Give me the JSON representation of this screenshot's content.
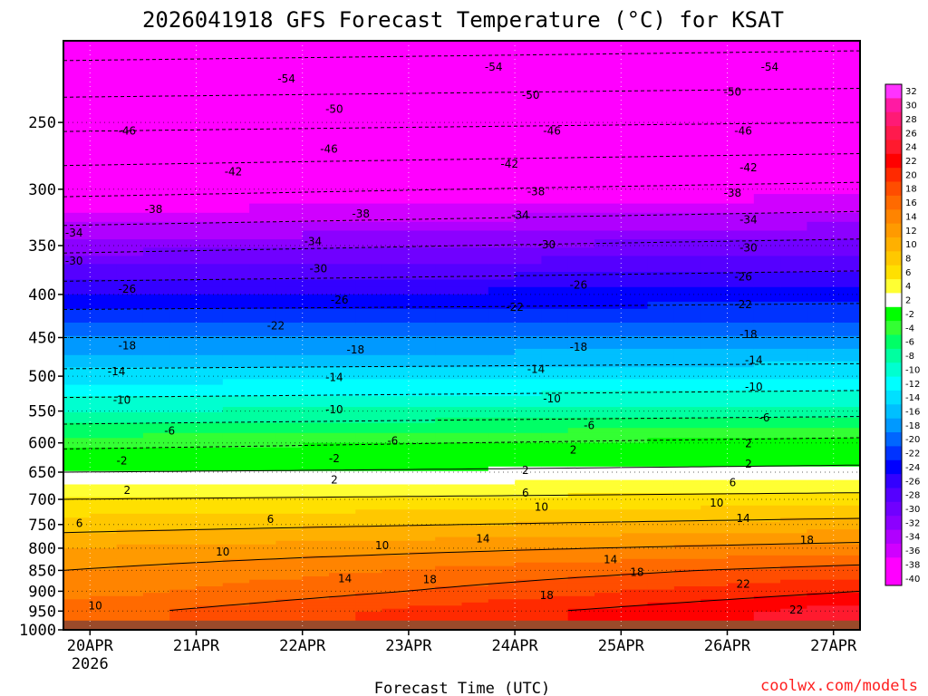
{
  "chart_data": {
    "type": "heatmap",
    "title": "2026041918 GFS Forecast Temperature (°C) for KSAT",
    "xlabel": "Forecast Time (UTC)",
    "ylabel": "",
    "credit": "coolwx.com/models",
    "x_ticks": [
      {
        "label": "20APR",
        "sublabel": "2026",
        "day": 0.25
      },
      {
        "label": "21APR",
        "day": 1.25
      },
      {
        "label": "22APR",
        "day": 2.25
      },
      {
        "label": "23APR",
        "day": 3.25
      },
      {
        "label": "24APR",
        "day": 4.25
      },
      {
        "label": "25APR",
        "day": 5.25
      },
      {
        "label": "26APR",
        "day": 6.25
      },
      {
        "label": "27APR",
        "day": 7.25
      }
    ],
    "xlim_days": [
      0,
      7.5
    ],
    "y_axis": "pressure (hPa), log scale, inverted",
    "ylim": [
      1000,
      200
    ],
    "y_ticks": [
      250,
      300,
      350,
      400,
      450,
      500,
      550,
      600,
      650,
      700,
      750,
      800,
      850,
      900,
      950,
      1000
    ],
    "grid": "dotted",
    "surface_pressure": 975,
    "colorbar": {
      "placement": "right",
      "labels": [
        32,
        30,
        28,
        26,
        24,
        22,
        20,
        18,
        16,
        14,
        12,
        10,
        8,
        6,
        4,
        2,
        -2,
        -4,
        -6,
        -8,
        -10,
        -12,
        -14,
        -16,
        -18,
        -20,
        -22,
        -24,
        -26,
        -28,
        -30,
        -32,
        -34,
        -36,
        -38,
        -40
      ],
      "colors": [
        "#ff33ff",
        "#ff1aa3",
        "#ff1a75",
        "#ff1a4d",
        "#ff1a2e",
        "#ff0000",
        "#ff2a00",
        "#ff4d00",
        "#ff6a00",
        "#ff8400",
        "#ff9a00",
        "#ffb000",
        "#ffc800",
        "#ffe000",
        "#ffff33",
        "#ffffff",
        "#00ff00",
        "#33ff33",
        "#00ff66",
        "#00ffa0",
        "#00ffd0",
        "#00ffff",
        "#00e0ff",
        "#00bfff",
        "#0099ff",
        "#0066ff",
        "#0033ff",
        "#0000ff",
        "#3300ff",
        "#5500ff",
        "#7000ff",
        "#8c00ff",
        "#b000ff",
        "#d000ff",
        "#ff00ff",
        "#ff00ff"
      ]
    },
    "contour_levels": [
      -54,
      -50,
      -46,
      -42,
      -38,
      -34,
      -30,
      -26,
      -22,
      -18,
      -14,
      -10,
      -6,
      -2,
      2,
      6,
      10,
      14,
      18,
      22
    ],
    "temperature_profile": {
      "pressure": [
        200,
        250,
        300,
        350,
        400,
        450,
        500,
        550,
        600,
        650,
        700,
        750,
        800,
        850,
        900,
        950
      ],
      "day0": [
        -56,
        -47,
        -39,
        -31,
        -24,
        -18,
        -13,
        -8,
        -3,
        2,
        6,
        9,
        12,
        14,
        15,
        17
      ],
      "day7": [
        -55,
        -46,
        -37,
        -29,
        -23,
        -18,
        -12,
        -7,
        -1,
        3,
        7,
        11,
        15,
        19,
        22,
        25
      ]
    },
    "contour_labels": [
      {
        "text": "-54",
        "day": 2.1,
        "p": 222
      },
      {
        "text": "-54",
        "day": 4.05,
        "p": 215
      },
      {
        "text": "-54",
        "day": 6.65,
        "p": 215
      },
      {
        "text": "-50",
        "day": 2.55,
        "p": 241
      },
      {
        "text": "-50",
        "day": 4.4,
        "p": 232
      },
      {
        "text": "-50",
        "day": 6.3,
        "p": 230
      },
      {
        "text": "-46",
        "day": 0.6,
        "p": 256
      },
      {
        "text": "-46",
        "day": 2.5,
        "p": 269
      },
      {
        "text": "-46",
        "day": 4.6,
        "p": 256
      },
      {
        "text": "-46",
        "day": 6.4,
        "p": 256
      },
      {
        "text": "-42",
        "day": 1.6,
        "p": 286
      },
      {
        "text": "-42",
        "day": 4.2,
        "p": 280
      },
      {
        "text": "-42",
        "day": 6.45,
        "p": 283
      },
      {
        "text": "-38",
        "day": 0.85,
        "p": 317
      },
      {
        "text": "-38",
        "day": 2.8,
        "p": 321
      },
      {
        "text": "-38",
        "day": 4.45,
        "p": 302
      },
      {
        "text": "-38",
        "day": 6.3,
        "p": 303
      },
      {
        "text": "-34",
        "day": 0.1,
        "p": 338
      },
      {
        "text": "-34",
        "day": 2.35,
        "p": 346
      },
      {
        "text": "-34",
        "day": 4.3,
        "p": 322
      },
      {
        "text": "-34",
        "day": 6.45,
        "p": 326
      },
      {
        "text": "-30",
        "day": 0.1,
        "p": 365
      },
      {
        "text": "-30",
        "day": 2.4,
        "p": 373
      },
      {
        "text": "-30",
        "day": 4.55,
        "p": 349
      },
      {
        "text": "-30",
        "day": 6.45,
        "p": 352
      },
      {
        "text": "-26",
        "day": 0.6,
        "p": 394
      },
      {
        "text": "-26",
        "day": 2.6,
        "p": 406
      },
      {
        "text": "-26",
        "day": 4.85,
        "p": 390
      },
      {
        "text": "-26",
        "day": 6.4,
        "p": 381
      },
      {
        "text": "-22",
        "day": 2.0,
        "p": 436
      },
      {
        "text": "-22",
        "day": 4.25,
        "p": 414
      },
      {
        "text": "-22",
        "day": 6.4,
        "p": 411
      },
      {
        "text": "-18",
        "day": 0.6,
        "p": 460
      },
      {
        "text": "-18",
        "day": 2.75,
        "p": 465
      },
      {
        "text": "-18",
        "day": 4.85,
        "p": 462
      },
      {
        "text": "-18",
        "day": 6.45,
        "p": 446
      },
      {
        "text": "-14",
        "day": 0.5,
        "p": 494
      },
      {
        "text": "-14",
        "day": 2.55,
        "p": 502
      },
      {
        "text": "-14",
        "day": 4.45,
        "p": 491
      },
      {
        "text": "-14",
        "day": 6.5,
        "p": 479
      },
      {
        "text": "-10",
        "day": 0.55,
        "p": 534
      },
      {
        "text": "-10",
        "day": 2.55,
        "p": 548
      },
      {
        "text": "-10",
        "day": 4.6,
        "p": 532
      },
      {
        "text": "-10",
        "day": 6.5,
        "p": 515
      },
      {
        "text": "-6",
        "day": 1.0,
        "p": 581
      },
      {
        "text": "-6",
        "day": 3.1,
        "p": 597
      },
      {
        "text": "-6",
        "day": 4.95,
        "p": 572
      },
      {
        "text": "-6",
        "day": 6.6,
        "p": 560
      },
      {
        "text": "-2",
        "day": 0.55,
        "p": 630
      },
      {
        "text": "-2",
        "day": 2.55,
        "p": 626
      },
      {
        "text": "2",
        "day": 4.8,
        "p": 612
      },
      {
        "text": "2",
        "day": 6.45,
        "p": 601
      },
      {
        "text": "2",
        "day": 0.6,
        "p": 683
      },
      {
        "text": "2",
        "day": 2.55,
        "p": 664
      },
      {
        "text": "2",
        "day": 4.35,
        "p": 647
      },
      {
        "text": "2",
        "day": 6.45,
        "p": 636
      },
      {
        "text": "6",
        "day": 0.15,
        "p": 748
      },
      {
        "text": "6",
        "day": 1.95,
        "p": 739
      },
      {
        "text": "6",
        "day": 4.35,
        "p": 688
      },
      {
        "text": "6",
        "day": 6.3,
        "p": 669
      },
      {
        "text": "10",
        "day": 1.5,
        "p": 808
      },
      {
        "text": "10",
        "day": 3.0,
        "p": 794
      },
      {
        "text": "10",
        "day": 4.5,
        "p": 715
      },
      {
        "text": "10",
        "day": 6.15,
        "p": 707
      },
      {
        "text": "14",
        "day": 2.65,
        "p": 869
      },
      {
        "text": "14",
        "day": 3.95,
        "p": 780
      },
      {
        "text": "14",
        "day": 5.15,
        "p": 825
      },
      {
        "text": "14",
        "day": 6.4,
        "p": 737
      },
      {
        "text": "18",
        "day": 3.45,
        "p": 872
      },
      {
        "text": "18",
        "day": 5.4,
        "p": 855
      },
      {
        "text": "18",
        "day": 7.0,
        "p": 783
      },
      {
        "text": "18",
        "day": 4.55,
        "p": 910
      },
      {
        "text": "22",
        "day": 6.4,
        "p": 882
      },
      {
        "text": "22",
        "day": 6.9,
        "p": 947
      },
      {
        "text": "10",
        "day": 0.3,
        "p": 937
      }
    ]
  }
}
